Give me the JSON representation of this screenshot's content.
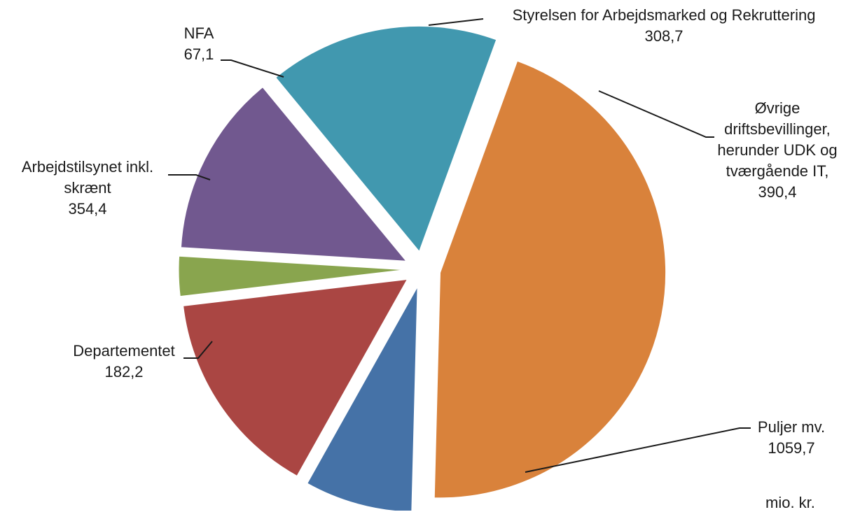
{
  "chart_data": {
    "type": "pie",
    "exploded": true,
    "unit": "mio. kr.",
    "slices": [
      {
        "label": "Puljer mv.",
        "value": 1059.7,
        "value_label": "1059,7",
        "color": "#D9823B"
      },
      {
        "label": "Departementet",
        "value": 182.2,
        "value_label": "182,2",
        "color": "#4572A7"
      },
      {
        "label": "Arbejdstilsynet inkl. skrænt",
        "value": 354.4,
        "value_label": "354,4",
        "color": "#AA4643"
      },
      {
        "label": "NFA",
        "value": 67.1,
        "value_label": "67,1",
        "color": "#89A54E"
      },
      {
        "label": "Styrelsen for Arbejdsmarked og Rekruttering",
        "value": 308.7,
        "value_label": "308,7",
        "color": "#71588F"
      },
      {
        "label": "Øvrige driftsbevillinger, herunder UDK og tværgående IT,",
        "value": 390.4,
        "value_label": "390,4",
        "color": "#4198AF"
      }
    ]
  }
}
